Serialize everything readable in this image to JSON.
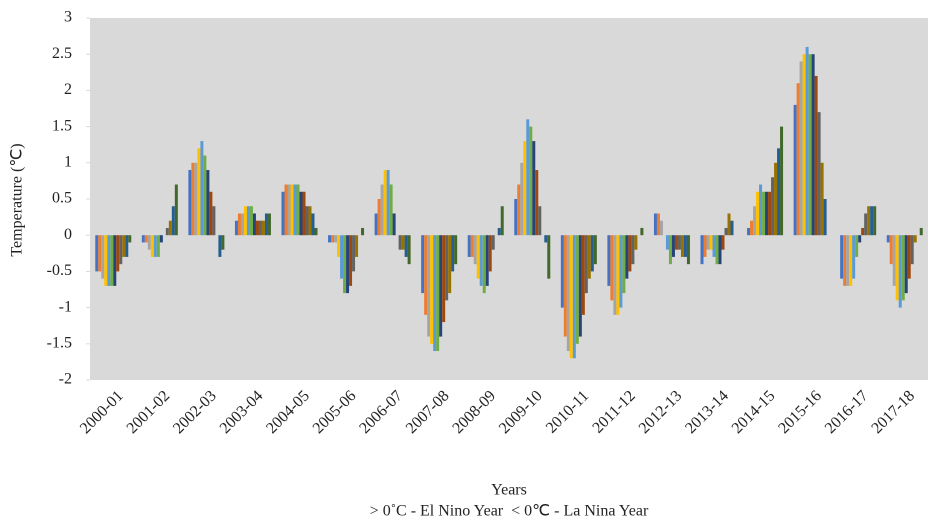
{
  "chart_data": {
    "type": "bar",
    "xlabel": "Years",
    "ylabel": "Temperature (℃)",
    "annotation": "> 0˚C - El Nino Year  < 0℃ - La Nina Year",
    "categories": [
      "2000-01",
      "2001-02",
      "2002-03",
      "2003-04",
      "2004-05",
      "2005-06",
      "2006-07",
      "2007-08",
      "2008-09",
      "2009-10",
      "2010-11",
      "2011-12",
      "2012-13",
      "2013-14",
      "2014-15",
      "2015-16",
      "2016-17",
      "2017-18"
    ],
    "series": [
      {
        "color": "#4472C4",
        "values": [
          -0.5,
          -0.1,
          0.9,
          0.2,
          0.6,
          -0.1,
          0.3,
          -0.8,
          -0.3,
          0.5,
          -1.0,
          -0.7,
          0.3,
          -0.4,
          0.1,
          1.8,
          -0.6,
          -0.1
        ]
      },
      {
        "color": "#ED7D31",
        "values": [
          -0.5,
          -0.1,
          1.0,
          0.3,
          0.7,
          -0.1,
          0.5,
          -1.1,
          -0.3,
          0.7,
          -1.4,
          -0.9,
          0.3,
          -0.3,
          0.2,
          2.1,
          -0.7,
          -0.4
        ]
      },
      {
        "color": "#A5A5A5",
        "values": [
          -0.6,
          -0.2,
          1.0,
          0.3,
          0.7,
          -0.1,
          0.7,
          -1.4,
          -0.4,
          1.0,
          -1.6,
          -1.1,
          0.2,
          -0.2,
          0.4,
          2.4,
          -0.7,
          -0.7
        ]
      },
      {
        "color": "#FFC000",
        "values": [
          -0.7,
          -0.3,
          1.2,
          0.4,
          0.7,
          -0.3,
          0.9,
          -1.5,
          -0.6,
          1.3,
          -1.7,
          -1.1,
          0,
          -0.2,
          0.6,
          2.5,
          -0.7,
          -0.9
        ]
      },
      {
        "color": "#5B9BD5",
        "values": [
          -0.7,
          -0.3,
          1.3,
          0.4,
          0.7,
          -0.6,
          0.9,
          -1.6,
          -0.7,
          1.6,
          -1.7,
          -1.0,
          -0.2,
          -0.3,
          0.7,
          2.6,
          -0.6,
          -1.0
        ]
      },
      {
        "color": "#70AD47",
        "values": [
          -0.7,
          -0.3,
          1.1,
          0.4,
          0.7,
          -0.8,
          0.7,
          -1.6,
          -0.8,
          1.5,
          -1.5,
          -0.8,
          -0.4,
          -0.4,
          0.6,
          2.5,
          -0.3,
          -0.9
        ]
      },
      {
        "color": "#264478",
        "values": [
          -0.7,
          -0.1,
          0.9,
          0.3,
          0.6,
          -0.8,
          0.3,
          -1.4,
          -0.7,
          1.3,
          -1.4,
          -0.6,
          -0.3,
          -0.4,
          0.6,
          2.5,
          -0.1,
          -0.8
        ]
      },
      {
        "color": "#9E480E",
        "values": [
          -0.5,
          0,
          0.6,
          0.2,
          0.6,
          -0.7,
          0,
          -1.2,
          -0.5,
          0.9,
          -1.1,
          -0.5,
          -0.2,
          -0.2,
          0.6,
          2.2,
          0.1,
          -0.6
        ]
      },
      {
        "color": "#636363",
        "values": [
          -0.4,
          0.1,
          0.4,
          0.2,
          0.4,
          -0.5,
          -0.2,
          -0.9,
          -0.2,
          0.4,
          -0.8,
          -0.4,
          -0.2,
          0.1,
          0.8,
          1.7,
          0.3,
          -0.4
        ]
      },
      {
        "color": "#997300",
        "values": [
          -0.3,
          0.2,
          0,
          0.2,
          0.4,
          -0.3,
          -0.2,
          -0.8,
          0,
          0,
          -0.6,
          -0.2,
          -0.3,
          0.3,
          1.0,
          1.0,
          0.4,
          -0.1
        ]
      },
      {
        "color": "#255E91",
        "values": [
          -0.3,
          0.4,
          -0.3,
          0.3,
          0.3,
          0,
          -0.3,
          -0.5,
          0.1,
          -0.1,
          -0.5,
          0,
          -0.3,
          0.2,
          1.2,
          0.5,
          0.4,
          0
        ]
      },
      {
        "color": "#43682B",
        "values": [
          -0.1,
          0.7,
          -0.2,
          0.3,
          0.1,
          0.1,
          -0.4,
          -0.4,
          0.4,
          -0.6,
          -0.4,
          0.1,
          -0.4,
          0,
          1.5,
          0,
          0.4,
          0.1
        ]
      }
    ],
    "ylim": [
      -2,
      3
    ],
    "yticks": [
      -2,
      -1.5,
      -1,
      -0.5,
      0,
      0.5,
      1,
      1.5,
      2,
      2.5,
      3
    ],
    "plot_background": "#D9D9D9"
  }
}
